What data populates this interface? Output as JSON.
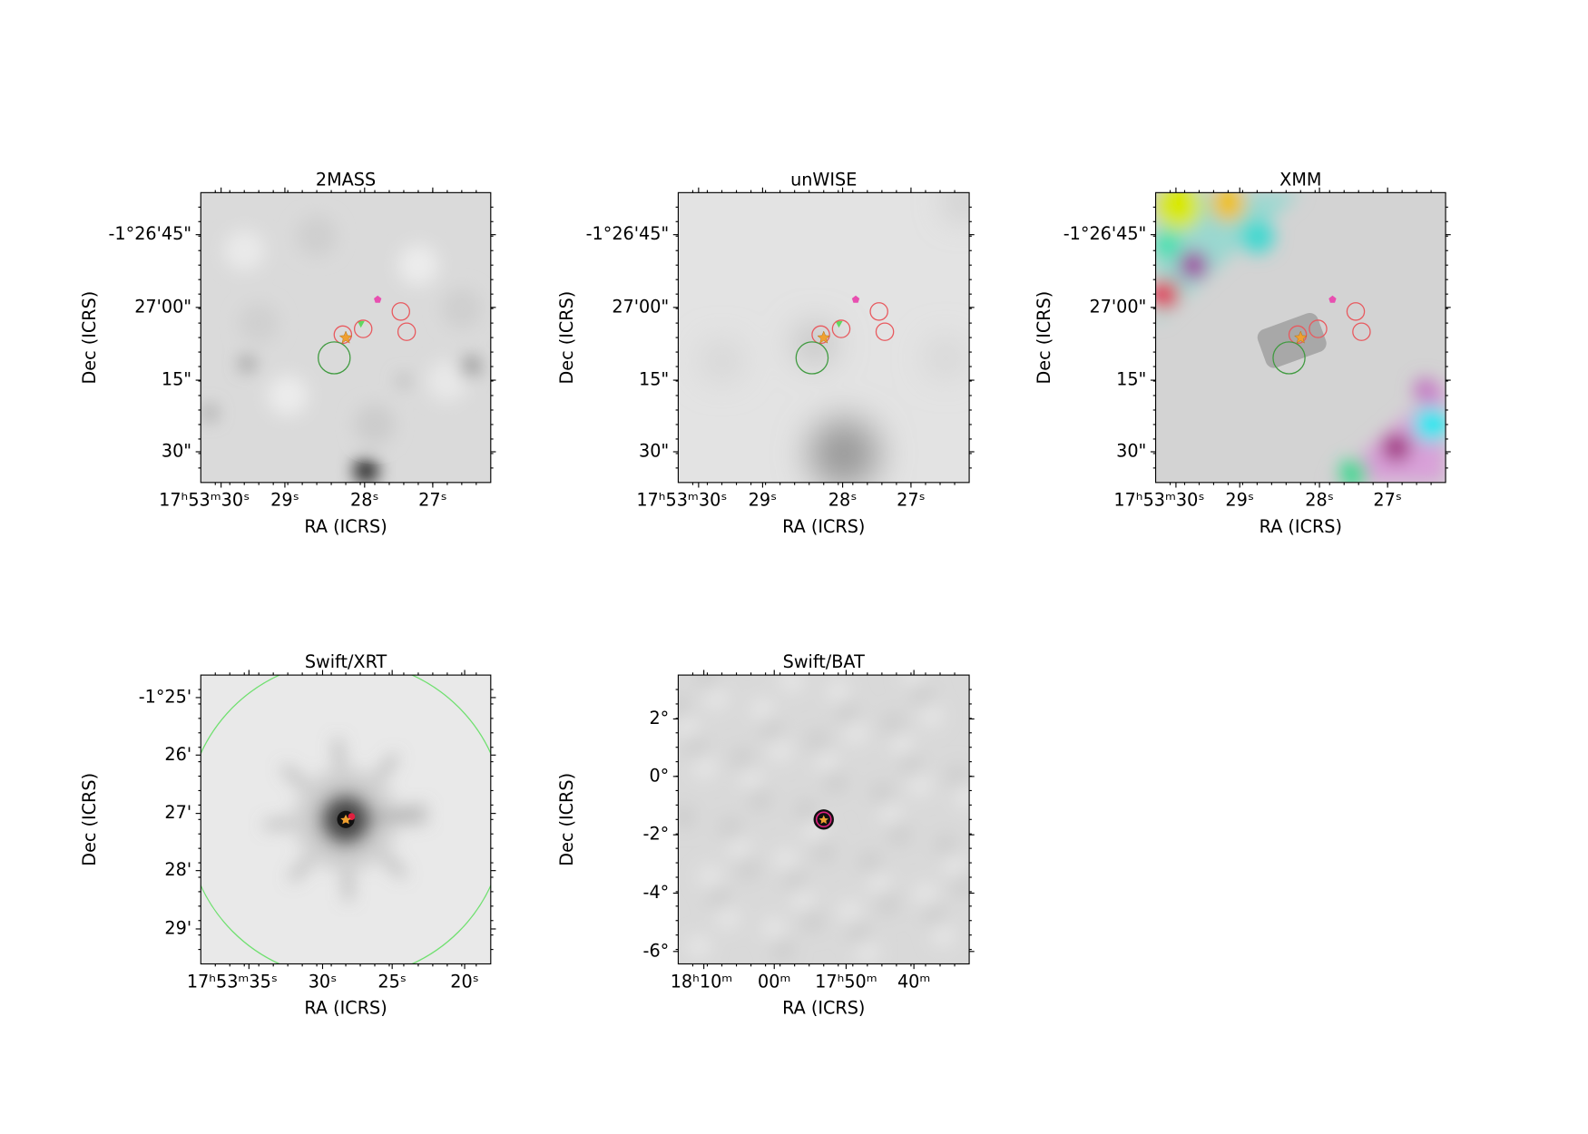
{
  "panels": [
    {
      "title": "2MASS",
      "xlabel": "RA (ICRS)",
      "ylabel": "Dec (ICRS)",
      "xticks": [
        "17ʰ53ᵐ30ˢ",
        "29ˢ",
        "28ˢ",
        "27ˢ"
      ],
      "yticks": [
        "-1°26'45\"",
        "27'00\"",
        "15\"",
        "30\""
      ]
    },
    {
      "title": "unWISE",
      "xlabel": "RA (ICRS)",
      "ylabel": "Dec (ICRS)",
      "xticks": [
        "17ʰ53ᵐ30ˢ",
        "29ˢ",
        "28ˢ",
        "27ˢ"
      ],
      "yticks": [
        "-1°26'45\"",
        "27'00\"",
        "15\"",
        "30\""
      ]
    },
    {
      "title": "XMM",
      "xlabel": "RA (ICRS)",
      "ylabel": "Dec (ICRS)",
      "xticks": [
        "17ʰ53ᵐ30ˢ",
        "29ˢ",
        "28ˢ",
        "27ˢ"
      ],
      "yticks": [
        "-1°26'45\"",
        "27'00\"",
        "15\"",
        "30\""
      ]
    },
    {
      "title": "Swift/XRT",
      "xlabel": "RA (ICRS)",
      "ylabel": "Dec (ICRS)",
      "xticks": [
        "17ʰ53ᵐ35ˢ",
        "30ˢ",
        "25ˢ",
        "20ˢ"
      ],
      "yticks": [
        "-1°25'",
        "26'",
        "27'",
        "28'",
        "29'"
      ]
    },
    {
      "title": "Swift/BAT",
      "xlabel": "RA (ICRS)",
      "ylabel": "Dec (ICRS)",
      "xticks": [
        "18ʰ10ᵐ",
        "00ᵐ",
        "17ʰ50ᵐ",
        "40ᵐ"
      ],
      "yticks": [
        "2°",
        "0°",
        "-2°",
        "-4°",
        "-6°"
      ]
    }
  ]
}
